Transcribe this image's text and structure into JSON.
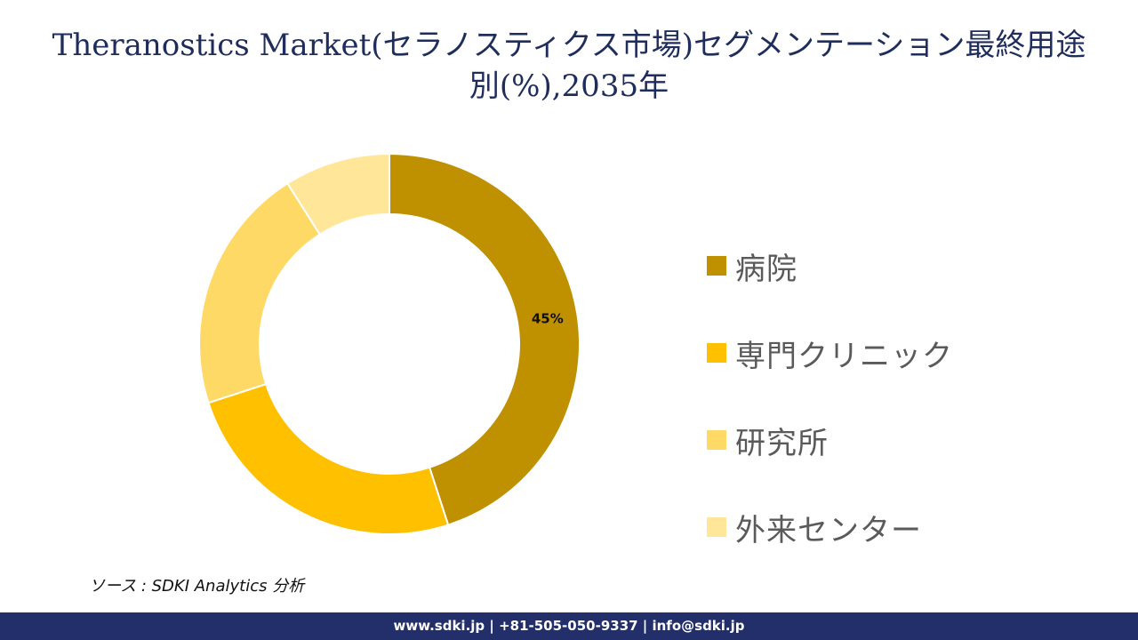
{
  "header": {
    "title_line1": "Theranostics Market(セラノスティクス市場)セグメンテーション最終用途",
    "title_line2": "別(%),2035年"
  },
  "chart_data": {
    "type": "pie",
    "donut": true,
    "categories": [
      "病院",
      "専門クリニック",
      "研究所",
      "外来センター"
    ],
    "values": [
      45,
      25,
      21,
      9
    ],
    "colors": [
      "#bf9000",
      "#ffc000",
      "#ffd966",
      "#ffe699"
    ],
    "data_labels": [
      "45%",
      "",
      "",
      ""
    ],
    "legend_position": "right"
  },
  "source": {
    "text": "ソース : SDKI Analytics 分析"
  },
  "footer": {
    "text": "www.sdki.jp | +81-505-050-9337 | info@sdki.jp"
  }
}
